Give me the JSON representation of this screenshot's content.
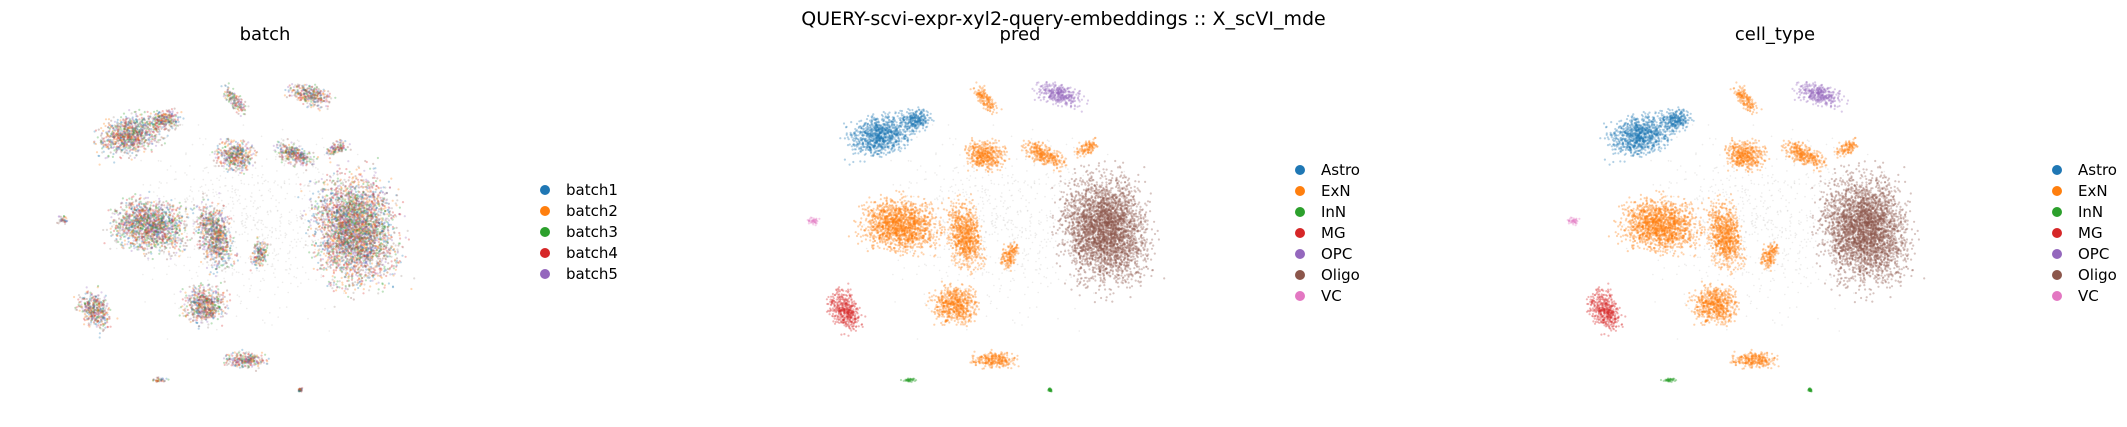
{
  "suptitle": "QUERY-scvi-expr-xyl2-query-embeddings :: X_scVI_mde",
  "palette": {
    "blue": "#1f77b4",
    "orange": "#ff7f0e",
    "green": "#2ca02c",
    "red": "#d62728",
    "purple": "#9467bd",
    "brown": "#8c564b",
    "pink": "#e377c2",
    "gray_mix": "#9b8a85"
  },
  "chart_data": [
    {
      "type": "scatter",
      "title": "batch",
      "xlabel": "",
      "ylabel": "",
      "grid": false,
      "axes_visible": false,
      "legend_position": "right",
      "legend": [
        "batch1",
        "batch2",
        "batch3",
        "batch4",
        "batch5"
      ],
      "legend_colors": [
        "#1f77b4",
        "#ff7f0e",
        "#2ca02c",
        "#d62728",
        "#9467bd"
      ],
      "coloring": "mixed"
    },
    {
      "type": "scatter",
      "title": "pred",
      "xlabel": "",
      "ylabel": "",
      "grid": false,
      "axes_visible": false,
      "legend_position": "right",
      "legend": [
        "Astro",
        "ExN",
        "InN",
        "MG",
        "OPC",
        "Oligo",
        "VC"
      ],
      "legend_colors": [
        "#1f77b4",
        "#ff7f0e",
        "#2ca02c",
        "#d62728",
        "#9467bd",
        "#8c564b",
        "#e377c2"
      ],
      "coloring": "celltype"
    },
    {
      "type": "scatter",
      "title": "cell_type",
      "xlabel": "",
      "ylabel": "",
      "grid": false,
      "axes_visible": false,
      "legend_position": "right",
      "legend": [
        "Astro",
        "ExN",
        "InN",
        "MG",
        "OPC",
        "Oligo",
        "VC"
      ],
      "legend_colors": [
        "#1f77b4",
        "#ff7f0e",
        "#2ca02c",
        "#d62728",
        "#9467bd",
        "#8c564b",
        "#e377c2"
      ],
      "coloring": "celltype"
    }
  ]
}
